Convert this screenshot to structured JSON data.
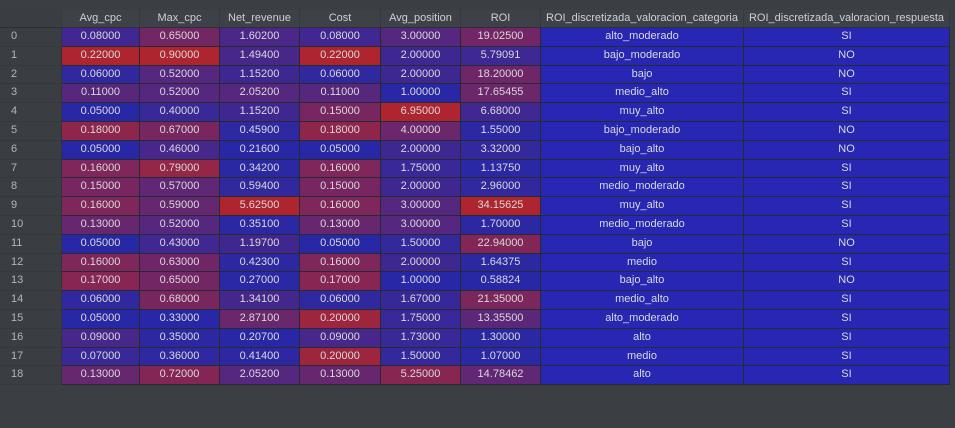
{
  "table": {
    "columns": [
      "Avg_cpc",
      "Max_cpc",
      "Net_revenue",
      "Cost",
      "Avg_position",
      "ROI",
      "ROI_discretizada_valoracion_categoria",
      "ROI_discretizada_valoracion_respuesta"
    ],
    "rows": [
      {
        "index": "0",
        "cells": [
          "0.08000",
          "0.65000",
          "1.60200",
          "0.08000",
          "3.00000",
          "19.02500",
          "alto_moderado",
          "SI"
        ]
      },
      {
        "index": "1",
        "cells": [
          "0.22000",
          "0.90000",
          "1.49400",
          "0.22000",
          "2.00000",
          "5.79091",
          "bajo_moderado",
          "NO"
        ]
      },
      {
        "index": "2",
        "cells": [
          "0.06000",
          "0.52000",
          "1.15200",
          "0.06000",
          "2.00000",
          "18.20000",
          "bajo",
          "NO"
        ]
      },
      {
        "index": "3",
        "cells": [
          "0.11000",
          "0.52000",
          "2.05200",
          "0.11000",
          "1.00000",
          "17.65455",
          "medio_alto",
          "SI"
        ]
      },
      {
        "index": "4",
        "cells": [
          "0.05000",
          "0.40000",
          "1.15200",
          "0.15000",
          "6.95000",
          "6.68000",
          "muy_alto",
          "SI"
        ]
      },
      {
        "index": "5",
        "cells": [
          "0.18000",
          "0.67000",
          "0.45900",
          "0.18000",
          "4.00000",
          "1.55000",
          "bajo_moderado",
          "NO"
        ]
      },
      {
        "index": "6",
        "cells": [
          "0.05000",
          "0.46000",
          "0.21600",
          "0.05000",
          "2.00000",
          "3.32000",
          "bajo_alto",
          "NO"
        ]
      },
      {
        "index": "7",
        "cells": [
          "0.16000",
          "0.79000",
          "0.34200",
          "0.16000",
          "1.75000",
          "1.13750",
          "muy_alto",
          "SI"
        ]
      },
      {
        "index": "8",
        "cells": [
          "0.15000",
          "0.57000",
          "0.59400",
          "0.15000",
          "2.00000",
          "2.96000",
          "medio_moderado",
          "SI"
        ]
      },
      {
        "index": "9",
        "cells": [
          "0.16000",
          "0.59000",
          "5.62500",
          "0.16000",
          "3.00000",
          "34.15625",
          "muy_alto",
          "SI"
        ]
      },
      {
        "index": "10",
        "cells": [
          "0.13000",
          "0.52000",
          "0.35100",
          "0.13000",
          "3.00000",
          "1.70000",
          "medio_moderado",
          "SI"
        ]
      },
      {
        "index": "11",
        "cells": [
          "0.05000",
          "0.43000",
          "1.19700",
          "0.05000",
          "1.50000",
          "22.94000",
          "bajo",
          "NO"
        ]
      },
      {
        "index": "12",
        "cells": [
          "0.16000",
          "0.63000",
          "0.42300",
          "0.16000",
          "2.00000",
          "1.64375",
          "medio",
          "SI"
        ]
      },
      {
        "index": "13",
        "cells": [
          "0.17000",
          "0.65000",
          "0.27000",
          "0.17000",
          "1.00000",
          "0.58824",
          "bajo_alto",
          "NO"
        ]
      },
      {
        "index": "14",
        "cells": [
          "0.06000",
          "0.68000",
          "1.34100",
          "0.06000",
          "1.67000",
          "21.35000",
          "medio_alto",
          "SI"
        ]
      },
      {
        "index": "15",
        "cells": [
          "0.05000",
          "0.33000",
          "2.87100",
          "0.20000",
          "1.75000",
          "13.35500",
          "alto_moderado",
          "SI"
        ]
      },
      {
        "index": "16",
        "cells": [
          "0.09000",
          "0.35000",
          "0.20700",
          "0.09000",
          "1.73000",
          "1.30000",
          "alto",
          "SI"
        ]
      },
      {
        "index": "17",
        "cells": [
          "0.07000",
          "0.36000",
          "0.41400",
          "0.20000",
          "1.50000",
          "1.07000",
          "medio",
          "SI"
        ]
      },
      {
        "index": "18",
        "cells": [
          "0.13000",
          "0.72000",
          "2.05200",
          "0.13000",
          "5.25000",
          "14.78462",
          "alto",
          "SI"
        ]
      }
    ]
  },
  "colors": {
    "cell_min": "#2828a6",
    "cell_max": "#ae2530",
    "text_cell": "#2727b3"
  }
}
